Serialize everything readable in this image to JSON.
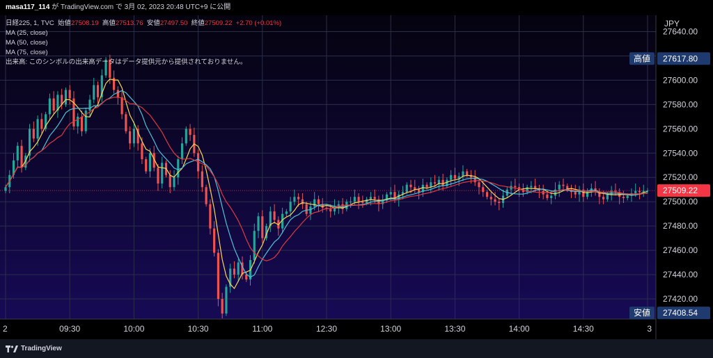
{
  "header": {
    "user": "masa117_114",
    "via": "が TradingView.com で 3月 02, 2023 20:48 UTC+9 に公開"
  },
  "legend": {
    "symbol": "日経225, 1, TVC",
    "open_label": "始値",
    "open_value": "27508.19",
    "high_label": "高値",
    "high_value": "27513.76",
    "low_label": "安値",
    "low_value": "27497.50",
    "close_label": "終値",
    "close_value": "27509.22",
    "change": "+2.70 (+0.01%)",
    "ma25": "MA (25, close)",
    "ma50": "MA (50, close)",
    "ma75": "MA (75, close)",
    "volume_note": "出来高: このシンボルの出来高データはデータ提供元から提供されておりません。"
  },
  "footer": {
    "brand": "TradingView"
  },
  "colors": {
    "up": "#26a69a",
    "down": "#ef5350",
    "ma25": "#f7d954",
    "ma50": "#4fc3d9",
    "ma75": "#e0393e",
    "label_bg": "#1e3a6e",
    "close_tag": "#f23645"
  },
  "chart_data": {
    "type": "candlestick",
    "currency": "JPY",
    "ylim": [
      27400,
      27650
    ],
    "y_ticks": [
      "27640.00",
      "27620.00",
      "27600.00",
      "27580.00",
      "27560.00",
      "27540.00",
      "27520.00",
      "27500.00",
      "27480.00",
      "27460.00",
      "27440.00",
      "27420.00"
    ],
    "y_tick_values": [
      27640,
      27620,
      27600,
      27580,
      27560,
      27540,
      27520,
      27500,
      27480,
      27460,
      27440,
      27420
    ],
    "x_ticks": [
      "2",
      "09:30",
      "10:00",
      "10:30",
      "11:00",
      "12:30",
      "13:00",
      "13:30",
      "14:00",
      "14:30",
      "3"
    ],
    "x_tick_index": [
      0,
      16,
      32,
      48,
      64,
      80,
      96,
      112,
      128,
      144,
      160
    ],
    "high_marker": {
      "label": "高値",
      "value": 27617.8,
      "text": "27617.80"
    },
    "low_marker": {
      "label": "安値",
      "value": 27408.54,
      "text": "27408.54"
    },
    "last_price": {
      "value": 27509.22,
      "text": "27509.22"
    },
    "closes": [
      27512,
      27522,
      27534,
      27546,
      27528,
      27538,
      27560,
      27552,
      27568,
      27560,
      27572,
      27585,
      27575,
      27588,
      27580,
      27592,
      27585,
      27562,
      27570,
      27558,
      27575,
      27584,
      27596,
      27586,
      27604,
      27617,
      27602,
      27592,
      27586,
      27572,
      27558,
      27548,
      27560,
      27548,
      27535,
      27525,
      27540,
      27528,
      27515,
      27532,
      27522,
      27512,
      27520,
      27535,
      27548,
      27560,
      27555,
      27540,
      27525,
      27512,
      27498,
      27478,
      27458,
      27420,
      27408,
      27430,
      27445,
      27440,
      27450,
      27440,
      27436,
      27452,
      27476,
      27488,
      27470,
      27480,
      27492,
      27485,
      27478,
      27490,
      27492,
      27500,
      27504,
      27502,
      27498,
      27490,
      27496,
      27502,
      27498,
      27495,
      27494,
      27492,
      27496,
      27498,
      27494,
      27500,
      27500,
      27504,
      27500,
      27499,
      27502,
      27504,
      27502,
      27498,
      27501,
      27506,
      27508,
      27502,
      27506,
      27508,
      27514,
      27512,
      27510,
      27508,
      27514,
      27512,
      27516,
      27515,
      27518,
      27513,
      27518,
      27522,
      27519,
      27521,
      27525,
      27522,
      27520,
      27516,
      27512,
      27508,
      27504,
      27502,
      27500,
      27499,
      27505,
      27510,
      27513,
      27512,
      27510,
      27508,
      27512,
      27513,
      27511,
      27509,
      27506,
      27503,
      27505,
      27510,
      27514,
      27513,
      27510,
      27508,
      27506,
      27510,
      27504,
      27509,
      27511,
      27508,
      27504,
      27502,
      27506,
      27509,
      27508,
      27504,
      27503,
      27505,
      27507,
      27509,
      27508,
      27509,
      27509.22
    ]
  }
}
